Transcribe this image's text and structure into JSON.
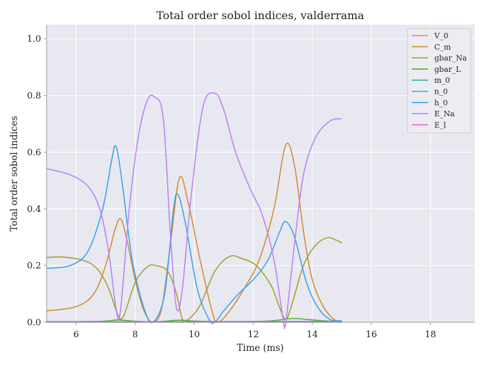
{
  "chart_data": {
    "type": "line",
    "title": "Total order sobol indices, valderrama",
    "xlabel": "Time (ms)",
    "ylabel": "Total order sobol indices",
    "xlim": [
      5,
      19.5
    ],
    "ylim": [
      0,
      1.05
    ],
    "x_ticks": [
      6,
      8,
      10,
      12,
      14,
      16,
      18
    ],
    "y_ticks": [
      0.0,
      0.2,
      0.4,
      0.6,
      0.8,
      1.0
    ],
    "x_tick_labels": [
      "6",
      "8",
      "10",
      "12",
      "14",
      "16",
      "18"
    ],
    "y_tick_labels": [
      "0.0",
      "0.2",
      "0.4",
      "0.6",
      "0.8",
      "1.0"
    ],
    "grid": true,
    "legend_position": "top-right",
    "series": [
      {
        "name": "V_0",
        "color": "#f77189",
        "points": [
          [
            5,
            0.001
          ],
          [
            15,
            0.001
          ]
        ]
      },
      {
        "name": "C_m",
        "color": "#d58c32",
        "points": [
          [
            5,
            0.04
          ],
          [
            6,
            0.055
          ],
          [
            6.6,
            0.1
          ],
          [
            7.0,
            0.2
          ],
          [
            7.3,
            0.32
          ],
          [
            7.5,
            0.365
          ],
          [
            7.7,
            0.3
          ],
          [
            8.0,
            0.15
          ],
          [
            8.3,
            0.04
          ],
          [
            8.6,
            0.0
          ],
          [
            8.9,
            0.05
          ],
          [
            9.2,
            0.28
          ],
          [
            9.5,
            0.51
          ],
          [
            9.8,
            0.42
          ],
          [
            10.2,
            0.22
          ],
          [
            10.6,
            0.04
          ],
          [
            10.8,
            0.0
          ],
          [
            11.2,
            0.04
          ],
          [
            11.7,
            0.12
          ],
          [
            12.2,
            0.22
          ],
          [
            12.7,
            0.4
          ],
          [
            13.1,
            0.625
          ],
          [
            13.4,
            0.55
          ],
          [
            13.7,
            0.32
          ],
          [
            14.0,
            0.15
          ],
          [
            14.4,
            0.05
          ],
          [
            14.8,
            0.005
          ],
          [
            15,
            0.0
          ]
        ]
      },
      {
        "name": "gbar_Na",
        "color": "#a4a031",
        "points": [
          [
            5,
            0.228
          ],
          [
            5.5,
            0.23
          ],
          [
            6.2,
            0.22
          ],
          [
            6.7,
            0.19
          ],
          [
            7.1,
            0.12
          ],
          [
            7.4,
            0.03
          ],
          [
            7.6,
            0.02
          ],
          [
            8.0,
            0.14
          ],
          [
            8.4,
            0.195
          ],
          [
            8.7,
            0.2
          ],
          [
            9.1,
            0.18
          ],
          [
            9.4,
            0.1
          ],
          [
            9.6,
            0.01
          ],
          [
            9.8,
            0.01
          ],
          [
            10.2,
            0.06
          ],
          [
            10.7,
            0.18
          ],
          [
            11.2,
            0.232
          ],
          [
            11.6,
            0.225
          ],
          [
            12.1,
            0.2
          ],
          [
            12.6,
            0.13
          ],
          [
            12.9,
            0.05
          ],
          [
            13.1,
            0.01
          ],
          [
            13.3,
            0.06
          ],
          [
            13.7,
            0.2
          ],
          [
            14.1,
            0.27
          ],
          [
            14.5,
            0.298
          ],
          [
            14.8,
            0.29
          ],
          [
            15,
            0.28
          ]
        ]
      },
      {
        "name": "gbar_L",
        "color": "#50b131",
        "points": [
          [
            5,
            0.002
          ],
          [
            6.8,
            0.003
          ],
          [
            7.4,
            0.008
          ],
          [
            7.9,
            0.004
          ],
          [
            8.6,
            0.001
          ],
          [
            9.5,
            0.007
          ],
          [
            10.0,
            0.004
          ],
          [
            11.0,
            0.002
          ],
          [
            12.5,
            0.004
          ],
          [
            13.3,
            0.013
          ],
          [
            13.8,
            0.01
          ],
          [
            14.5,
            0.004
          ],
          [
            15,
            0.003
          ]
        ]
      },
      {
        "name": "m_0",
        "color": "#36ada4",
        "points": [
          [
            5,
            0.001
          ],
          [
            15,
            0.002
          ]
        ]
      },
      {
        "name": "n_0",
        "color": "#38a9c5",
        "points": [
          [
            5,
            0.001
          ],
          [
            15,
            0.003
          ]
        ]
      },
      {
        "name": "h_0",
        "color": "#3ba3ec",
        "points": [
          [
            5,
            0.19
          ],
          [
            5.8,
            0.2
          ],
          [
            6.4,
            0.25
          ],
          [
            6.9,
            0.4
          ],
          [
            7.2,
            0.57
          ],
          [
            7.35,
            0.62
          ],
          [
            7.55,
            0.5
          ],
          [
            7.9,
            0.22
          ],
          [
            8.3,
            0.05
          ],
          [
            8.6,
            0.0
          ],
          [
            9.0,
            0.1
          ],
          [
            9.3,
            0.4
          ],
          [
            9.45,
            0.45
          ],
          [
            9.7,
            0.35
          ],
          [
            10.1,
            0.12
          ],
          [
            10.5,
            0.01
          ],
          [
            10.7,
            0.0
          ],
          [
            11.0,
            0.04
          ],
          [
            11.5,
            0.1
          ],
          [
            12.0,
            0.15
          ],
          [
            12.5,
            0.22
          ],
          [
            12.9,
            0.32
          ],
          [
            13.1,
            0.355
          ],
          [
            13.4,
            0.3
          ],
          [
            13.8,
            0.14
          ],
          [
            14.2,
            0.05
          ],
          [
            14.6,
            0.01
          ],
          [
            15,
            0.005
          ]
        ]
      },
      {
        "name": "E_Na",
        "color": "#bb83f4",
        "points": [
          [
            5,
            0.542
          ],
          [
            5.8,
            0.52
          ],
          [
            6.4,
            0.48
          ],
          [
            6.8,
            0.4
          ],
          [
            7.1,
            0.25
          ],
          [
            7.35,
            0.05
          ],
          [
            7.5,
            0.04
          ],
          [
            7.8,
            0.4
          ],
          [
            8.1,
            0.65
          ],
          [
            8.4,
            0.78
          ],
          [
            8.65,
            0.795
          ],
          [
            8.95,
            0.72
          ],
          [
            9.2,
            0.3
          ],
          [
            9.4,
            0.05
          ],
          [
            9.6,
            0.12
          ],
          [
            9.9,
            0.45
          ],
          [
            10.3,
            0.76
          ],
          [
            10.7,
            0.808
          ],
          [
            11.0,
            0.75
          ],
          [
            11.4,
            0.6
          ],
          [
            11.9,
            0.47
          ],
          [
            12.3,
            0.38
          ],
          [
            12.7,
            0.22
          ],
          [
            13.0,
            0.02
          ],
          [
            13.1,
            0.0
          ],
          [
            13.4,
            0.28
          ],
          [
            13.7,
            0.52
          ],
          [
            14.1,
            0.65
          ],
          [
            14.6,
            0.71
          ],
          [
            15,
            0.718
          ]
        ]
      },
      {
        "name": "E_l",
        "color": "#f45fd4",
        "points": [
          [
            5,
            0.0
          ],
          [
            15,
            0.0
          ]
        ]
      }
    ]
  }
}
